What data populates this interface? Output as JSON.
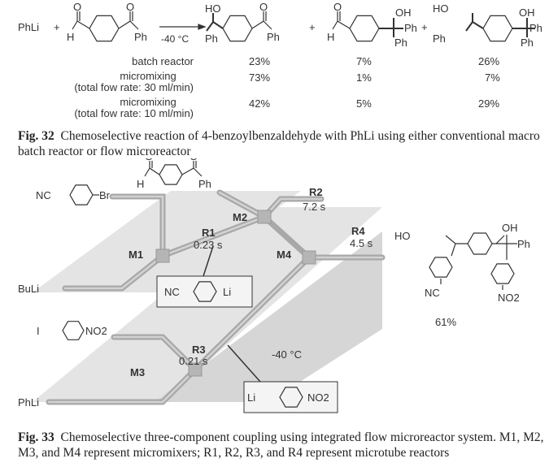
{
  "fig32": {
    "reagent": "PhLi",
    "plus": "+",
    "condition": "-40 °C",
    "atoms": {
      "O": "O",
      "H": "H",
      "Ph": "Ph",
      "HO": "HO",
      "OH": "OH"
    },
    "rows": [
      {
        "label": "batch reactor",
        "sublabel": "",
        "values": [
          "23%",
          "7%",
          "26%"
        ]
      },
      {
        "label": "micromixing",
        "sublabel": "(total fow rate: 30 ml/min)",
        "values": [
          "73%",
          "1%",
          "7%"
        ]
      },
      {
        "label": "micromixing",
        "sublabel": "(total fow rate: 10 ml/min)",
        "values": [
          "42%",
          "5%",
          "29%"
        ]
      }
    ],
    "caption_num": "Fig. 32",
    "caption": "Chemoselective reaction of 4-benzoylbenzaldehyde with PhLi using either conventional macro batch reactor or flow microreactor"
  },
  "fig33": {
    "inputs": {
      "nc_br": [
        "NC",
        "Br"
      ],
      "buli": "BuLi",
      "i_no2": [
        "I",
        "NO2"
      ],
      "phli": "PhLi"
    },
    "mixers": [
      "M1",
      "M2",
      "M3",
      "M4"
    ],
    "reactors": [
      {
        "name": "R1",
        "time": "0.23 s"
      },
      {
        "name": "R2",
        "time": "7.2 s"
      },
      {
        "name": "R3",
        "time": "0.21 s"
      },
      {
        "name": "R4",
        "time": "4.5 s"
      }
    ],
    "intermediate1": [
      "NC",
      "Li"
    ],
    "intermediate2": [
      "Li",
      "NO2"
    ],
    "temperature": "-40 °C",
    "product": {
      "HO": "HO",
      "OH": "OH",
      "Ph": "Ph",
      "NC": "NC",
      "NO2": "NO2",
      "yield": "61%"
    },
    "caption_num": "Fig. 33",
    "caption": "Chemoselective three-component coupling using integrated flow microreactor system. M1, M2, M3, and M4 represent micromixers; R1, R2, R3, and R4 represent microtube reactors"
  }
}
